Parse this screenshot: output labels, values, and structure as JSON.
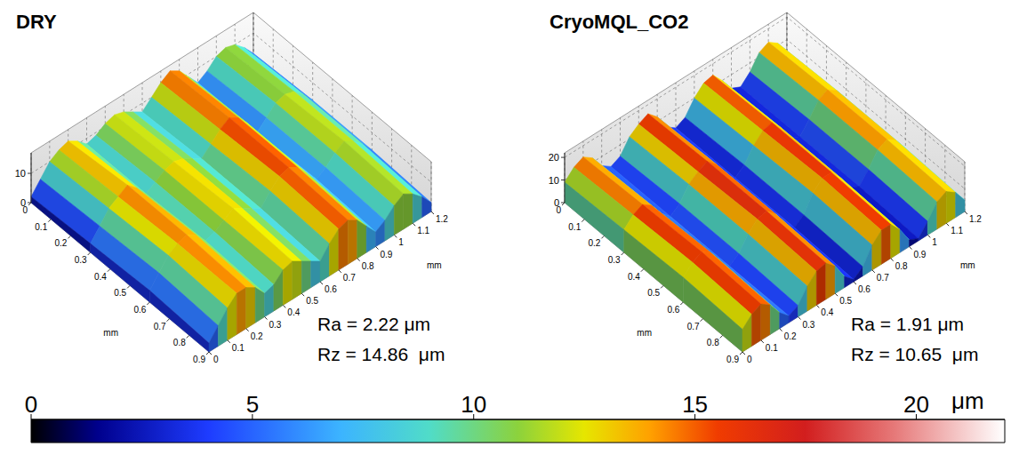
{
  "chart_data": [
    {
      "type": "surface",
      "title": "DRY",
      "x_label": "mm",
      "y_label": "mm",
      "grid": true,
      "x": [
        0,
        0.05,
        0.1,
        0.15,
        0.2,
        0.25,
        0.3,
        0.35,
        0.4,
        0.45,
        0.5,
        0.55,
        0.6,
        0.65,
        0.7,
        0.75,
        0.8,
        0.85,
        0.9,
        0.95,
        1,
        1.05,
        1.1,
        1.15,
        1.2
      ],
      "y": [
        0,
        0.3,
        0.6,
        0.9
      ],
      "z": [
        [
          2,
          6,
          10,
          12,
          13,
          11,
          8,
          9,
          11,
          12,
          11,
          9,
          7,
          10,
          13,
          15,
          13,
          9,
          5,
          7,
          10,
          11,
          10,
          7,
          3
        ],
        [
          3,
          7,
          11,
          13,
          15,
          12,
          8,
          10,
          12,
          13,
          12,
          10,
          8,
          11,
          14,
          16,
          14,
          10,
          5,
          8,
          11,
          12,
          11,
          8,
          4
        ],
        [
          4,
          8,
          12,
          14,
          15,
          13,
          9,
          10,
          12,
          14,
          12,
          10,
          8,
          12,
          15,
          16,
          14,
          10,
          6,
          8,
          11,
          13,
          11,
          8,
          4
        ],
        [
          3,
          7,
          11,
          14,
          14,
          12,
          8,
          9,
          12,
          13,
          11,
          9,
          7,
          11,
          14,
          15,
          13,
          9,
          5,
          7,
          10,
          12,
          10,
          7,
          3
        ]
      ],
      "xlim": [
        0,
        1.2
      ],
      "xticks": [
        0,
        0.1,
        0.2,
        0.3,
        0.4,
        0.5,
        0.6,
        0.7,
        0.8,
        0.9,
        1,
        1.1,
        1.2
      ],
      "ylim": [
        0,
        0.9
      ],
      "yticks": [
        0,
        0.1,
        0.2,
        0.3,
        0.4,
        0.5,
        0.6,
        0.7,
        0.8,
        0.9
      ],
      "zlim": [
        0,
        17
      ],
      "zticks": [
        0,
        10
      ],
      "annotations": [
        "Ra = 2.22 μm",
        "Rz = 14.86  μm"
      ]
    },
    {
      "type": "surface",
      "title": "CryoMQL_CO2",
      "x_label": "mm",
      "y_label": "mm",
      "grid": true,
      "x": [
        0,
        0.05,
        0.1,
        0.15,
        0.2,
        0.25,
        0.3,
        0.35,
        0.4,
        0.45,
        0.5,
        0.55,
        0.6,
        0.65,
        0.7,
        0.75,
        0.8,
        0.85,
        0.9,
        0.95,
        1,
        1.05,
        1.1,
        1.15,
        1.2
      ],
      "y": [
        0,
        0.3,
        0.6,
        0.9
      ],
      "z": [
        [
          9,
          13,
          15,
          12,
          6,
          3,
          5,
          11,
          14,
          16,
          12,
          5,
          2,
          4,
          10,
          14,
          15,
          10,
          4,
          2,
          6,
          12,
          14,
          11,
          5
        ],
        [
          10,
          14,
          16,
          13,
          7,
          3,
          6,
          12,
          15,
          17,
          13,
          6,
          2,
          5,
          11,
          15,
          16,
          11,
          4,
          2,
          7,
          13,
          15,
          12,
          6
        ],
        [
          11,
          15,
          17,
          14,
          8,
          3,
          6,
          12,
          16,
          17,
          13,
          6,
          2,
          5,
          12,
          16,
          16,
          11,
          4,
          2,
          7,
          13,
          15,
          12,
          6
        ],
        [
          10,
          14,
          16,
          13,
          7,
          3,
          5,
          11,
          15,
          16,
          12,
          5,
          1,
          4,
          11,
          15,
          15,
          10,
          3,
          1,
          6,
          12,
          14,
          11,
          5
        ]
      ],
      "xlim": [
        0,
        1.2
      ],
      "xticks": [
        0,
        0.1,
        0.2,
        0.3,
        0.4,
        0.5,
        0.6,
        0.7,
        0.8,
        0.9,
        1,
        1.1,
        1.2
      ],
      "ylim": [
        0,
        0.9
      ],
      "yticks": [
        0,
        0.1,
        0.2,
        0.3,
        0.4,
        0.5,
        0.6,
        0.7,
        0.8,
        0.9
      ],
      "zlim": [
        0,
        22
      ],
      "zticks": [
        0,
        10,
        20
      ],
      "annotations": [
        "Ra = 1.91 μm",
        "Rz = 10.65  μm"
      ]
    }
  ],
  "colorbar": {
    "range": [
      0,
      22
    ],
    "ticks": [
      0,
      5,
      10,
      15,
      20
    ],
    "label": "μm"
  }
}
